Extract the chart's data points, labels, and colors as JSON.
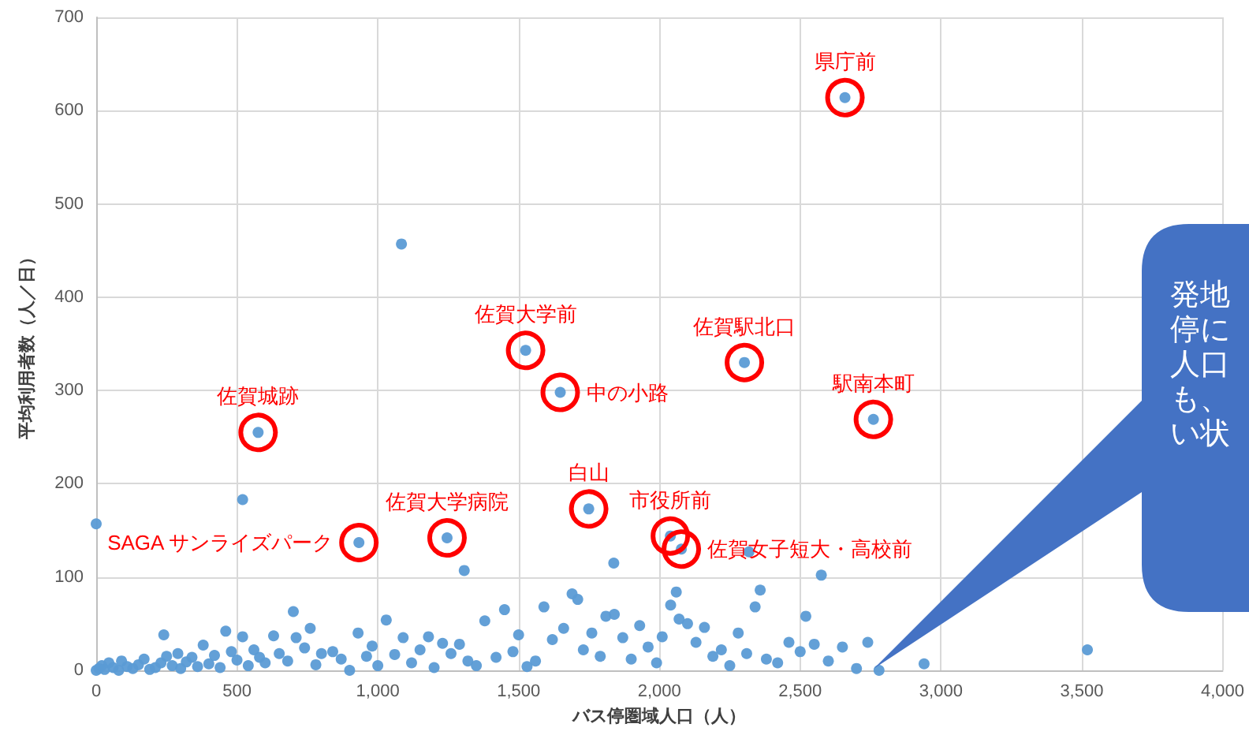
{
  "chart_data": {
    "type": "scatter",
    "xlabel": "バス停圏域人口（人）",
    "ylabel": "平均利用者数（人／日）",
    "xlim": [
      0,
      4000
    ],
    "ylim": [
      0,
      700
    ],
    "xticks": [
      0,
      500,
      {
        "value": 1000,
        "label": "1,000"
      },
      {
        "value": 1500,
        "label": "1,500"
      },
      {
        "value": 2000,
        "label": "2,000"
      },
      {
        "value": 2500,
        "label": "2,500"
      },
      {
        "value": 3000,
        "label": "3,000"
      },
      {
        "value": 3500,
        "label": "3,500"
      },
      {
        "value": 4000,
        "label": "4,000"
      }
    ],
    "yticks": [
      0,
      100,
      200,
      300,
      400,
      500,
      600,
      700
    ],
    "grid": true,
    "marker": "circle",
    "series": [
      {
        "color": "#5b9bd5",
        "x": [
          2659,
          1084,
          1525,
          1648,
          2302,
          575,
          2760,
          520,
          1749,
          2039,
          2078,
          933,
          1246,
          0,
          1307,
          1838,
          2318,
          2575,
          2358,
          3520,
          2940,
          2780,
          0,
          10,
          20,
          30,
          45,
          60,
          80,
          90,
          110,
          130,
          150,
          170,
          190,
          210,
          230,
          240,
          250,
          270,
          290,
          300,
          320,
          340,
          360,
          380,
          400,
          420,
          440,
          460,
          480,
          500,
          520,
          540,
          560,
          580,
          600,
          630,
          650,
          680,
          700,
          710,
          740,
          760,
          780,
          800,
          840,
          870,
          900,
          930,
          960,
          980,
          1000,
          1030,
          1060,
          1090,
          1120,
          1150,
          1180,
          1200,
          1230,
          1260,
          1290,
          1320,
          1350,
          1380,
          1420,
          1450,
          1480,
          1500,
          1530,
          1560,
          1590,
          1620,
          1660,
          1690,
          1710,
          1730,
          1760,
          1790,
          1810,
          1840,
          1870,
          1900,
          1930,
          1960,
          1990,
          2010,
          2040,
          2060,
          2070,
          2100,
          2130,
          2160,
          2190,
          2220,
          2250,
          2280,
          2310,
          2340,
          2380,
          2420,
          2460,
          2500,
          2520,
          2550,
          2600,
          2650,
          2700,
          2740
        ],
        "values": [
          614,
          457,
          343,
          298,
          330,
          255,
          269,
          183,
          173,
          144,
          130,
          137,
          142,
          157,
          107,
          115,
          127,
          102,
          86,
          22,
          7,
          0,
          0,
          2,
          5,
          1,
          8,
          3,
          0,
          10,
          4,
          2,
          6,
          12,
          1,
          3,
          8,
          38,
          15,
          5,
          18,
          2,
          9,
          14,
          4,
          27,
          7,
          16,
          3,
          42,
          20,
          11,
          36,
          5,
          22,
          14,
          8,
          37,
          18,
          10,
          63,
          35,
          24,
          45,
          6,
          18,
          20,
          12,
          0,
          40,
          15,
          26,
          5,
          54,
          17,
          35,
          8,
          22,
          36,
          3,
          29,
          18,
          28,
          10,
          5,
          53,
          14,
          65,
          20,
          38,
          4,
          10,
          68,
          33,
          45,
          82,
          76,
          22,
          40,
          15,
          58,
          60,
          35,
          12,
          48,
          25,
          8,
          36,
          70,
          84,
          55,
          50,
          30,
          46,
          15,
          22,
          5,
          40,
          18,
          68,
          12,
          8,
          30,
          20,
          58,
          28,
          10,
          25,
          2,
          30
        ]
      }
    ],
    "annotations": [
      {
        "text": "県庁前",
        "x": 2659,
        "y": 614
      },
      {
        "text": "佐賀大学前",
        "x": 1525,
        "y": 343
      },
      {
        "text": "中の小路",
        "x": 1648,
        "y": 298
      },
      {
        "text": "佐賀駅北口",
        "x": 2302,
        "y": 330
      },
      {
        "text": "佐賀城跡",
        "x": 575,
        "y": 255
      },
      {
        "text": "駅南本町",
        "x": 2760,
        "y": 269
      },
      {
        "text": "佐賀大学病院",
        "x": 1246,
        "y": 142
      },
      {
        "text": "白山",
        "x": 1749,
        "y": 173
      },
      {
        "text": "市役所前",
        "x": 2039,
        "y": 144
      },
      {
        "text": "佐賀女子短大・高校前",
        "x": 2078,
        "y": 130
      },
      {
        "text": "SAGA サンライズパーク",
        "x": 933,
        "y": 137
      },
      "発地停に人口も、い状"
    ]
  }
}
